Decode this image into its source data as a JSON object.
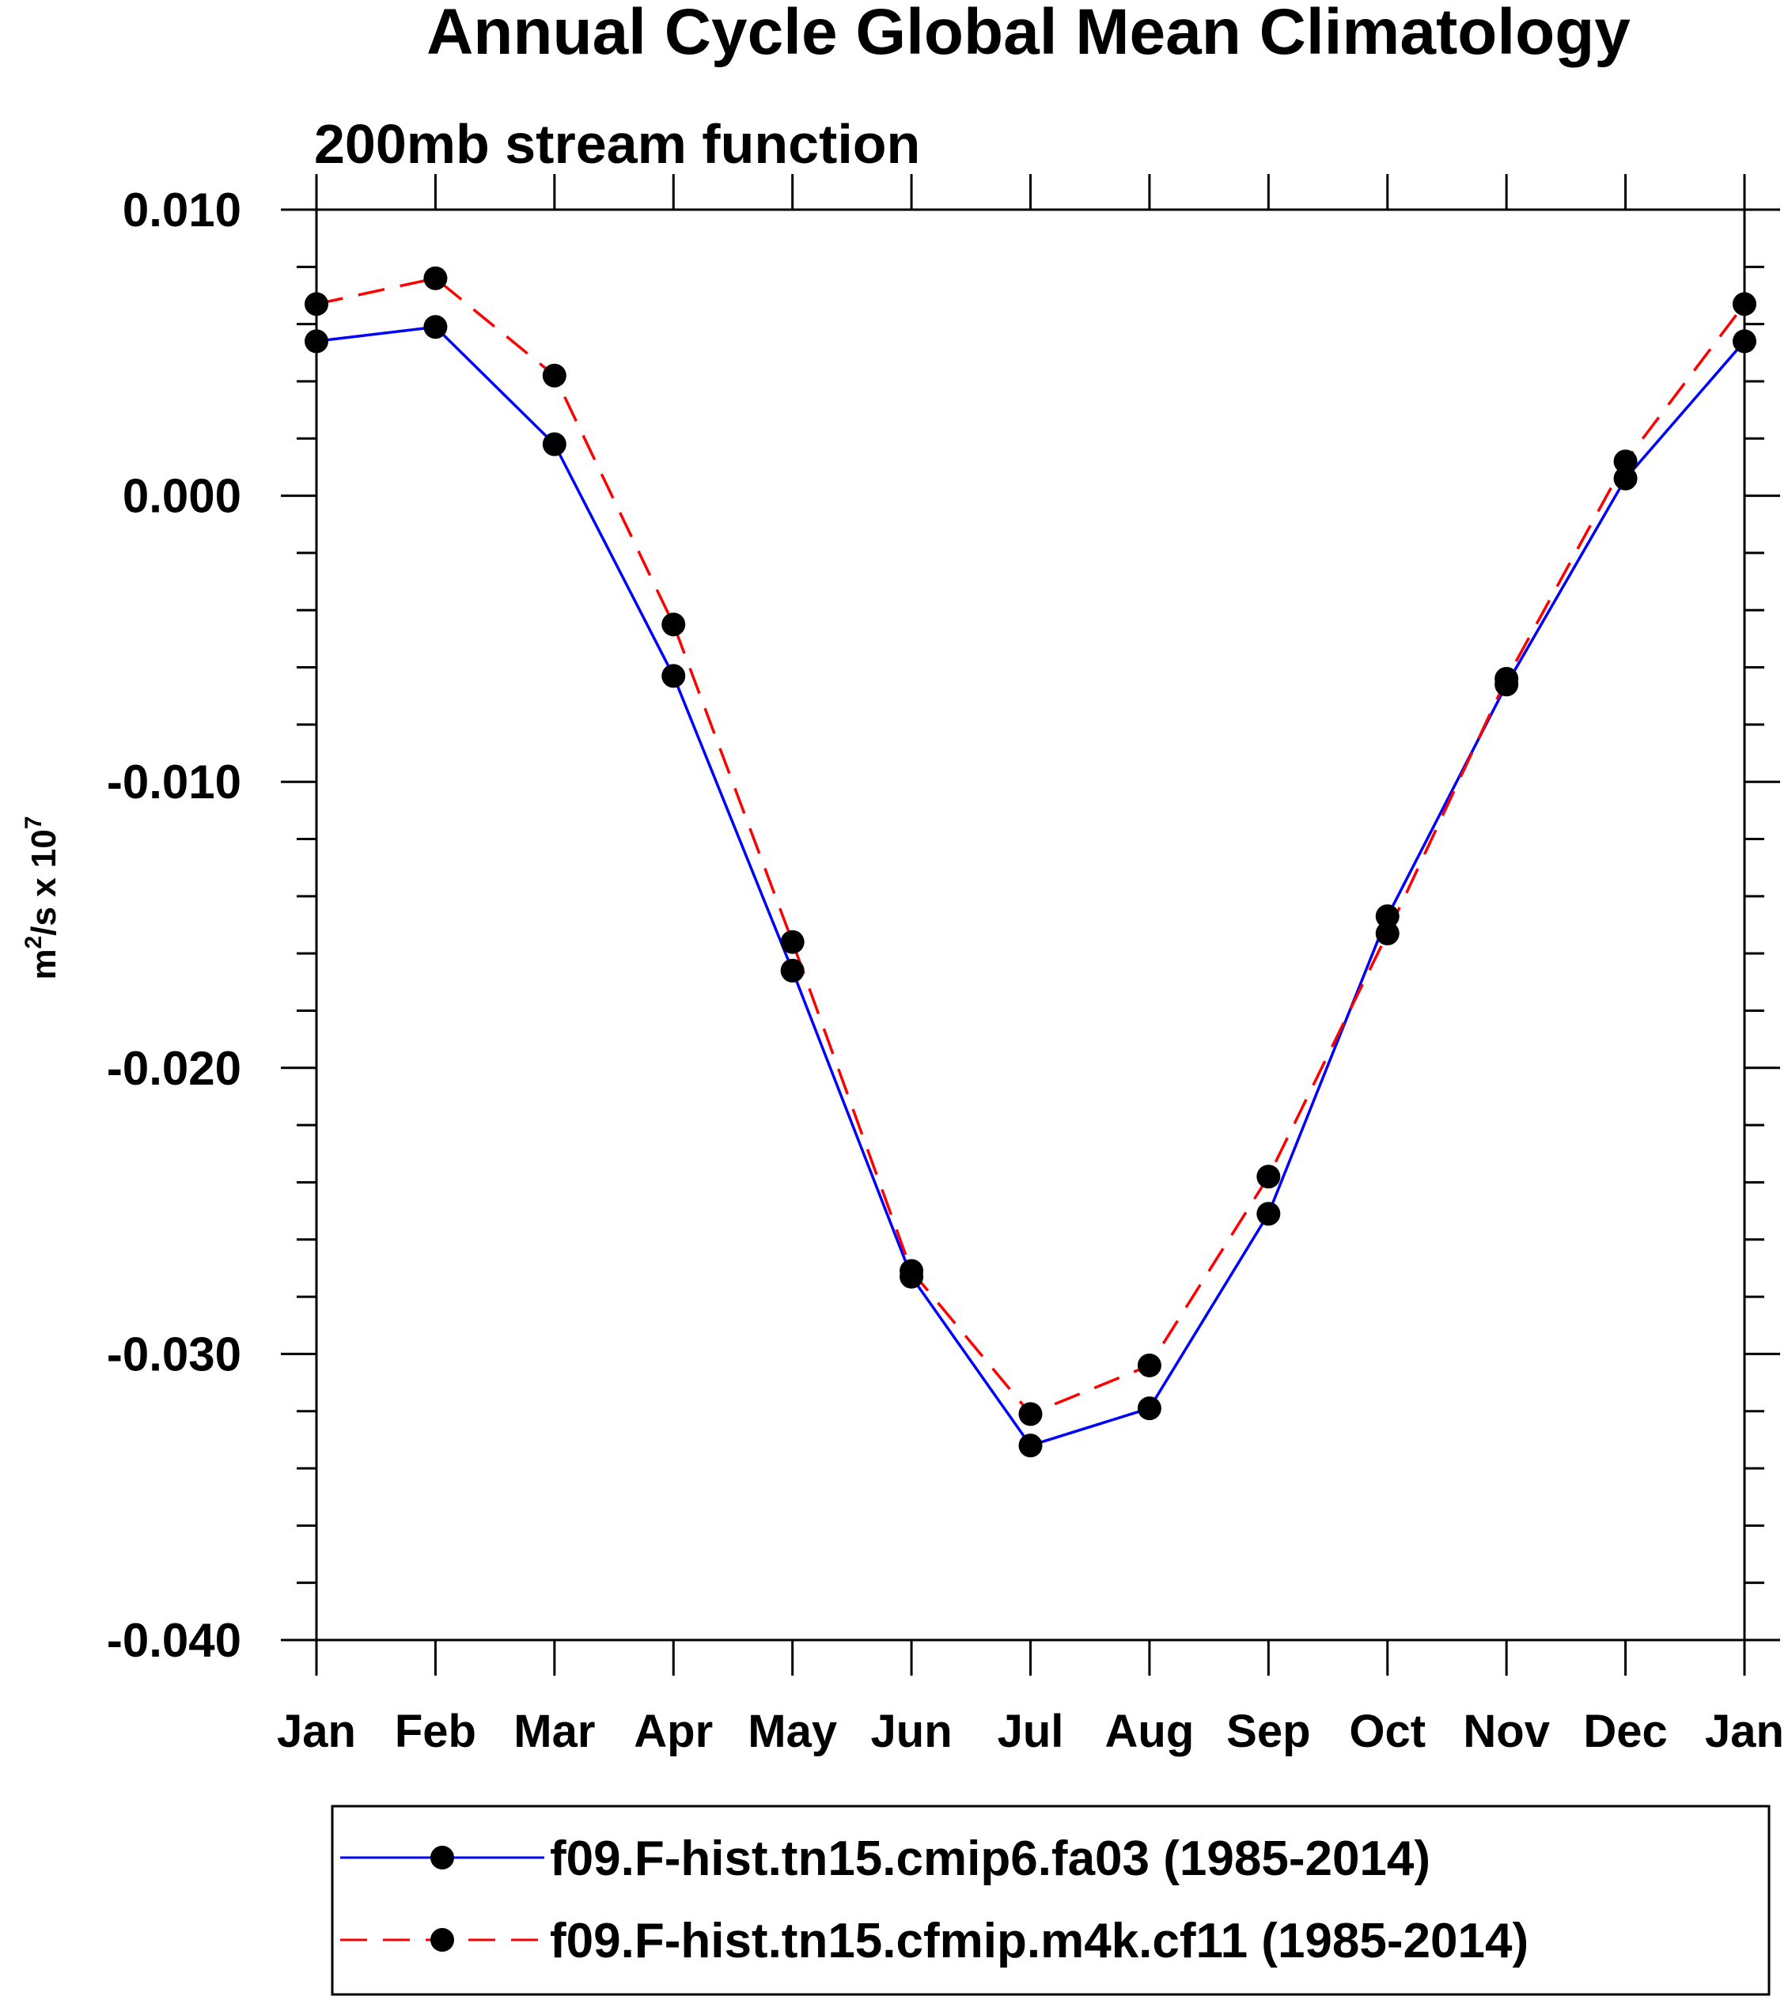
{
  "chart_data": {
    "type": "line",
    "title": "Annual Cycle Global Mean Climatology",
    "subtitle": "200mb stream function",
    "ylabel": {
      "base": "m",
      "sup1": "2",
      "mid": "/s x 10",
      "sup2": "7"
    },
    "xlabel": "",
    "categories": [
      "Jan",
      "Feb",
      "Mar",
      "Apr",
      "May",
      "Jun",
      "Jul",
      "Aug",
      "Sep",
      "Oct",
      "Nov",
      "Dec",
      "Jan"
    ],
    "ylim": [
      -0.04,
      0.01
    ],
    "yticks": [
      0.01,
      0.0,
      -0.01,
      -0.02,
      -0.03,
      -0.04
    ],
    "ytick_labels": [
      "0.010",
      "0.000",
      "-0.010",
      "-0.020",
      "-0.030",
      "-0.040"
    ],
    "y_minor_step": 0.002,
    "series": [
      {
        "name": "f09.F-hist.tn15.cmip6.fa03 (1985-2014)",
        "color": "#0000ff",
        "dash": "solid",
        "values": [
          0.0054,
          0.0059,
          0.0018,
          -0.0063,
          -0.0166,
          -0.0273,
          -0.0332,
          -0.0319,
          -0.0251,
          -0.0147,
          -0.0066,
          0.0006,
          0.0054
        ]
      },
      {
        "name": "f09.F-hist.tn15.cfmip.m4k.cf11 (1985-2014)",
        "color": "#ff0000",
        "dash": "dashed",
        "values": [
          0.0067,
          0.0076,
          0.0042,
          -0.0045,
          -0.0156,
          -0.0271,
          -0.0321,
          -0.0304,
          -0.0238,
          -0.0153,
          -0.0064,
          0.0012,
          0.0067
        ]
      }
    ],
    "marker": "filled-circle",
    "marker_color": "#000000",
    "legend_position": "bottom"
  }
}
